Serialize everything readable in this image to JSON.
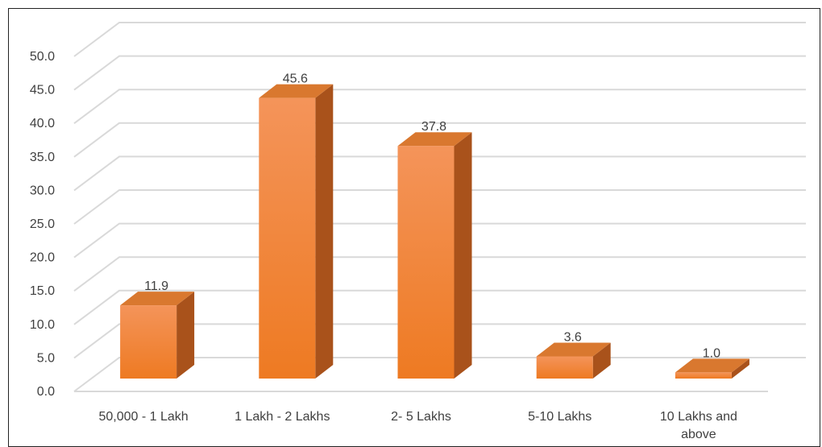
{
  "chart_data": {
    "type": "bar",
    "style": "3d-column",
    "categories": [
      "50,000 - 1 Lakh",
      "1 Lakh - 2 Lakhs",
      "2- 5 Lakhs",
      "5-10 Lakhs",
      "10 Lakhs and above"
    ],
    "values": [
      11.9,
      45.6,
      37.8,
      3.6,
      1.0
    ],
    "data_labels": [
      "11.9",
      "45.6",
      "37.8",
      "3.6",
      "1.0"
    ],
    "y_ticks": [
      "0.0",
      "5.0",
      "10.0",
      "15.0",
      "20.0",
      "25.0",
      "30.0",
      "35.0",
      "40.0",
      "45.0",
      "50.0"
    ],
    "ylim": [
      0,
      50
    ],
    "grid": true,
    "legend": "none",
    "colors": {
      "bar_front_top": "#f4945a",
      "bar_front_bottom": "#ee7a22",
      "bar_side": "#a9521b",
      "bar_top": "#d9782f",
      "grid": "#d9d9d9",
      "text": "#404040"
    }
  }
}
